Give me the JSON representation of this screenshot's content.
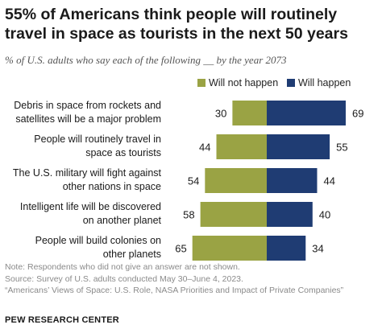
{
  "title": "55% of Americans think people will routinely travel in space as tourists in the next 50 years",
  "subtitle": "% of U.S. adults who say each of the following __ by the year 2073",
  "colors": {
    "will_not": "#9aa344",
    "will": "#1f3c73"
  },
  "chart_data": {
    "type": "bar",
    "orientation": "diverging-horizontal",
    "categories": [
      [
        "Debris in space from rockets and",
        "satellites will be a major problem"
      ],
      [
        "People will routinely travel in",
        "space as tourists"
      ],
      [
        "The U.S. military will fight against",
        "other nations in space"
      ],
      [
        "Intelligent life will be discovered",
        "on another planet"
      ],
      [
        "People will build colonies on",
        "other planets"
      ]
    ],
    "series": [
      {
        "name": "Will not happen",
        "values": [
          30,
          44,
          54,
          58,
          65
        ]
      },
      {
        "name": "Will happen",
        "values": [
          69,
          55,
          44,
          40,
          34
        ]
      }
    ],
    "legend_position": "top-right",
    "grid": false
  },
  "notes": [
    "Note: Respondents who did not give an answer are not shown.",
    "Source: Survey of U.S. adults conducted May 30–June 4, 2023.",
    "“Americans’ Views of Space: U.S. Role, NASA Priorities and Impact of Private Companies”"
  ],
  "source_brand": "PEW RESEARCH CENTER"
}
